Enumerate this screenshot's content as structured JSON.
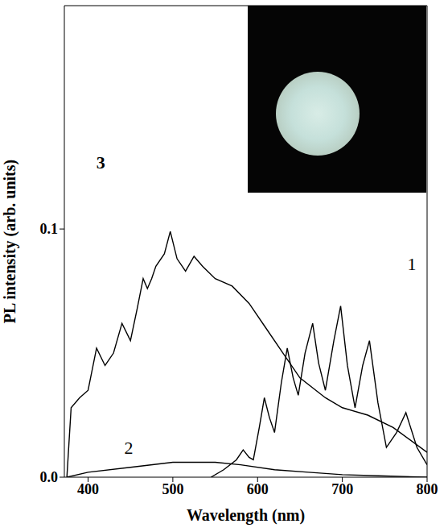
{
  "chart_data": {
    "type": "line",
    "x_label": "Wavelength (nm)",
    "y_label": "PL intensity (arb. units)",
    "xlim": [
      372,
      800
    ],
    "xticks": [
      400,
      500,
      600,
      700,
      800
    ],
    "ylim": [
      0,
      0.19
    ],
    "yticks": [
      {
        "value": 0,
        "label": "0.0"
      },
      0.1
    ],
    "grid": false,
    "series": [
      {
        "color": "#000000",
        "x": [
          545,
          560,
          575,
          583,
          590,
          595,
          602,
          608,
          614,
          620,
          628,
          635,
          642,
          648,
          656,
          665,
          672,
          680,
          690,
          698,
          706,
          715,
          724,
          732,
          742,
          752,
          764,
          775,
          788,
          800
        ],
        "values": [
          0.0,
          0.003,
          0.007,
          0.011,
          0.008,
          0.007,
          0.02,
          0.032,
          0.024,
          0.018,
          0.038,
          0.052,
          0.04,
          0.033,
          0.05,
          0.062,
          0.046,
          0.035,
          0.055,
          0.069,
          0.045,
          0.028,
          0.045,
          0.055,
          0.03,
          0.012,
          0.018,
          0.026,
          0.012,
          0.005
        ]
      },
      {
        "color": "#000000",
        "x": [
          375,
          400,
          450,
          500,
          550,
          580,
          620,
          660,
          700,
          750,
          800
        ],
        "values": [
          0.0,
          0.002,
          0.004,
          0.006,
          0.006,
          0.005,
          0.003,
          0.002,
          0.001,
          0.0005,
          0.0
        ]
      },
      {
        "color": "#000000",
        "x": [
          375,
          380,
          390,
          400,
          410,
          420,
          430,
          440,
          450,
          458,
          465,
          470,
          475,
          480,
          490,
          497,
          505,
          515,
          525,
          535,
          550,
          570,
          590,
          610,
          630,
          650,
          680,
          700,
          730,
          760,
          800
        ],
        "values": [
          0.0,
          0.028,
          0.032,
          0.035,
          0.052,
          0.045,
          0.05,
          0.062,
          0.055,
          0.068,
          0.08,
          0.076,
          0.08,
          0.085,
          0.09,
          0.099,
          0.088,
          0.083,
          0.089,
          0.085,
          0.08,
          0.077,
          0.07,
          0.06,
          0.05,
          0.04,
          0.032,
          0.028,
          0.025,
          0.02,
          0.01
        ]
      }
    ],
    "annotations": [
      {
        "text": "1",
        "x": 782,
        "y": 0.086
      },
      {
        "text": "2",
        "x": 448,
        "y": 0.012
      },
      {
        "text": "3",
        "x": 415,
        "y": 0.127
      }
    ]
  }
}
